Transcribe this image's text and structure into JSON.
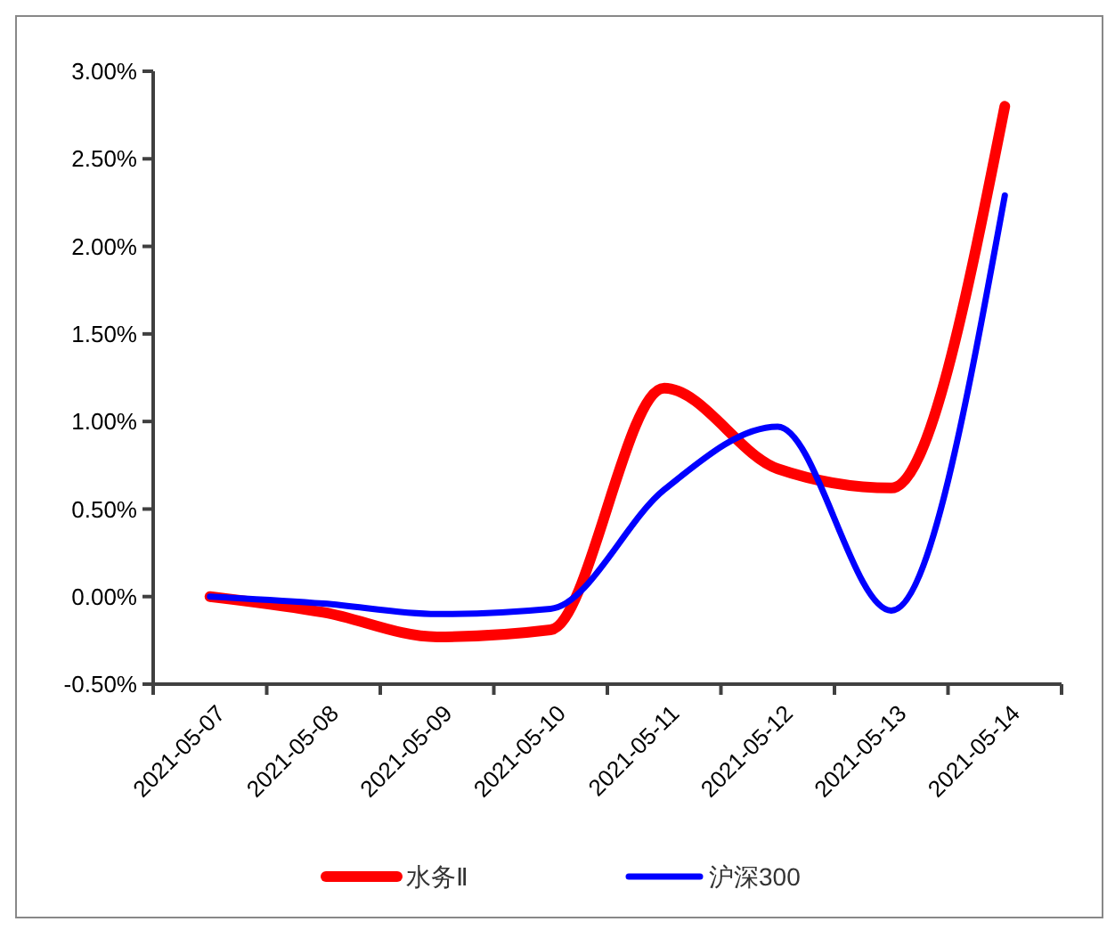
{
  "chart_data": {
    "type": "line",
    "categories": [
      "2021-05-07",
      "2021-05-08",
      "2021-05-09",
      "2021-05-10",
      "2021-05-11",
      "2021-05-12",
      "2021-05-13",
      "2021-05-14"
    ],
    "series": [
      {
        "name": "水务Ⅱ",
        "color": "#ff0000",
        "values": [
          0,
          -0.09,
          -0.23,
          -0.19,
          1.19,
          0.73,
          0.62,
          2.8
        ]
      },
      {
        "name": "沪深300",
        "color": "#0000ff",
        "values": [
          0,
          -0.04,
          -0.1,
          -0.07,
          0.61,
          0.97,
          -0.08,
          2.29
        ]
      }
    ],
    "ylim": [
      -0.5,
      3
    ],
    "yticks": [
      {
        "value": -0.5,
        "label": "-0.50%"
      },
      {
        "value": 0,
        "label": "0.00%"
      },
      {
        "value": 0.5,
        "label": "0.50%"
      },
      {
        "value": 1,
        "label": "1.00%"
      },
      {
        "value": 1.5,
        "label": "1.50%"
      },
      {
        "value": 2,
        "label": "2.00%"
      },
      {
        "value": 2.5,
        "label": "2.50%"
      },
      {
        "value": 3,
        "label": "3.00%"
      }
    ],
    "grid": false,
    "legend": "bottom",
    "marker": "none",
    "line_style": "solid"
  }
}
